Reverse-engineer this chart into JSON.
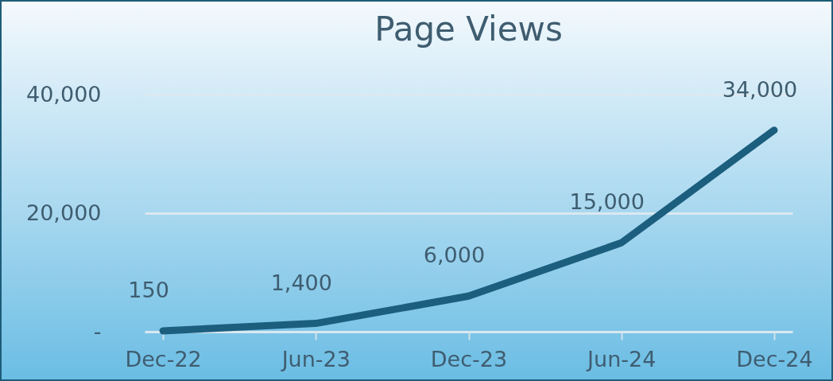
{
  "chart_data": {
    "type": "line",
    "title": "Page Views",
    "categories": [
      "Dec-22",
      "Jun-23",
      "Dec-23",
      "Jun-24",
      "Dec-24"
    ],
    "series": [
      {
        "color": "#1b5e7e",
        "values": [
          150,
          1400,
          6000,
          15000,
          34000
        ],
        "value_labels": [
          "150",
          "1,400",
          "6,000",
          "15,000",
          "34,000"
        ]
      }
    ],
    "ylim": [
      0,
      40000
    ],
    "yticks": [
      {
        "value": 0,
        "label": "-"
      },
      {
        "value": 20000,
        "label": "20,000"
      },
      {
        "value": 40000,
        "label": "40,000"
      }
    ],
    "grid": "y",
    "legend": false,
    "marker": "none",
    "line_style": "solid"
  }
}
